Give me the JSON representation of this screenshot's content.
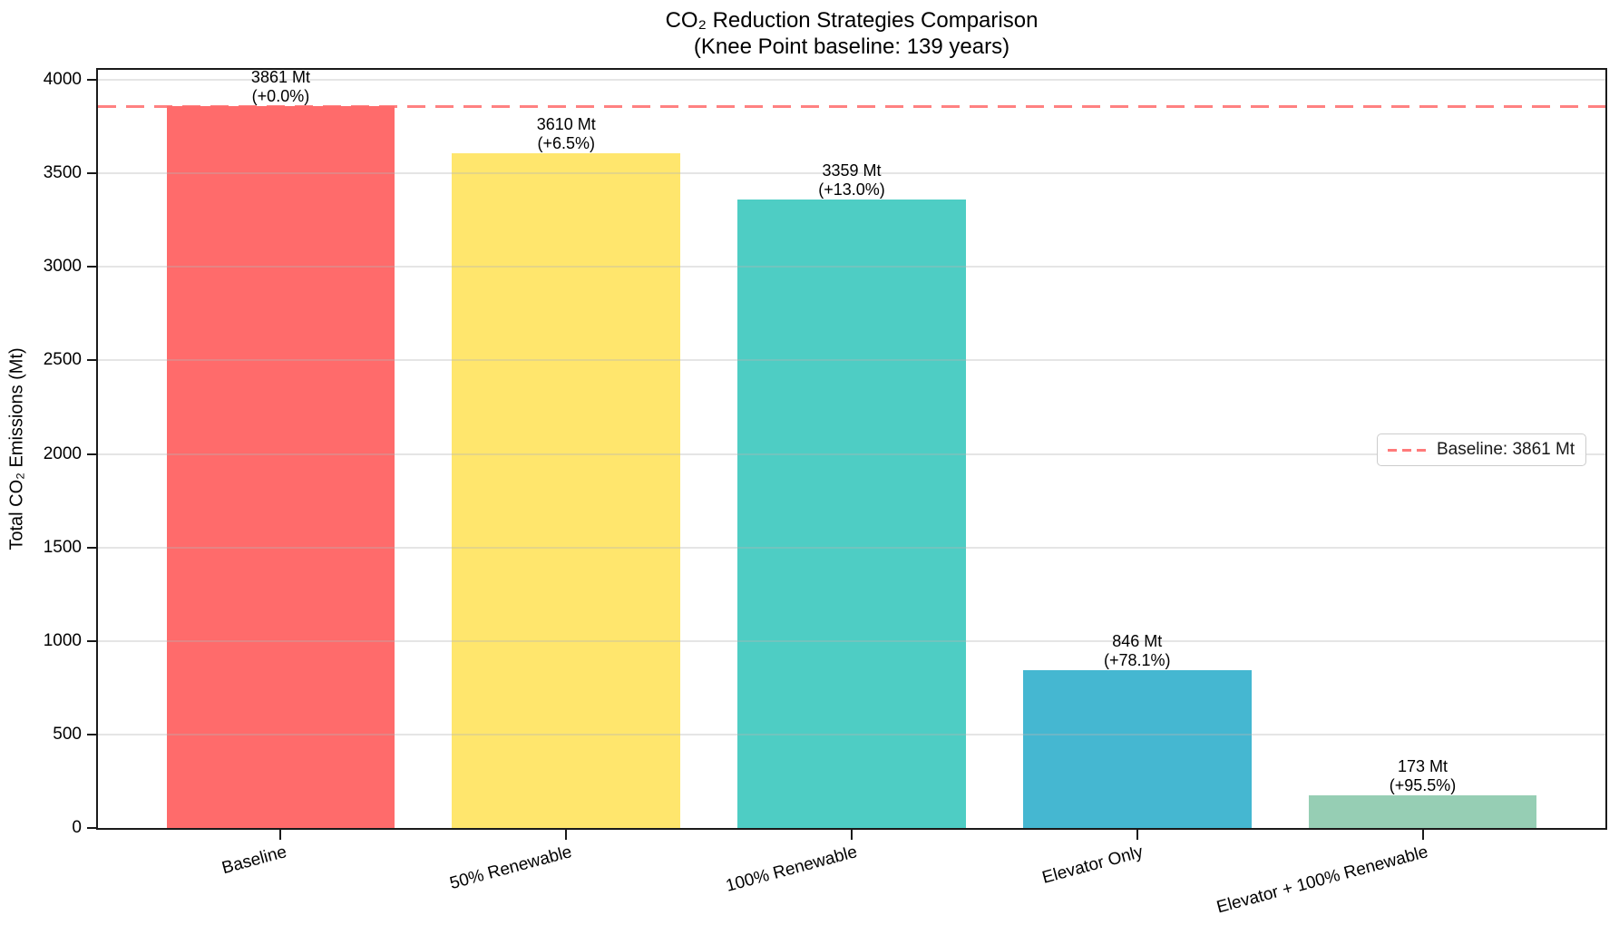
{
  "title": {
    "line1": "CO₂ Reduction Strategies Comparison",
    "line2": "(Knee Point baseline: 139 years)"
  },
  "chart_data": {
    "type": "bar",
    "title": "CO₂ Reduction Strategies Comparison",
    "subtitle": "(Knee Point baseline: 139 years)",
    "ylabel": "Total CO₂ Emissions (Mt)",
    "xlabel": "",
    "categories": [
      "Baseline",
      "50% Renewable",
      "100% Renewable",
      "Elevator Only",
      "Elevator + 100% Renewable"
    ],
    "values": [
      3861,
      3610,
      3359,
      846,
      173
    ],
    "value_labels": [
      "3861 Mt",
      "3610 Mt",
      "3359 Mt",
      "846 Mt",
      "173 Mt"
    ],
    "pct_labels": [
      "(+0.0%)",
      "(+6.5%)",
      "(+13.0%)",
      "(+78.1%)",
      "(+95.5%)"
    ],
    "bar_colors": [
      "#FF6B6B",
      "#FFE66D",
      "#4ECDC4",
      "#45B7D1",
      "#96CEB4"
    ],
    "yticks": [
      0,
      500,
      1000,
      1500,
      2000,
      2500,
      3000,
      3500,
      4000
    ],
    "ylim": [
      0,
      4054
    ],
    "grid": true,
    "x_tick_rotation_deg": 15,
    "baseline_line": {
      "value": 3861,
      "color": "#FF6B6B",
      "style": "dashed",
      "legend_label": "Baseline: 3861 Mt"
    },
    "legend": {
      "position": "center-right",
      "entries": [
        {
          "label": "Baseline: 3861 Mt",
          "color": "#FF6B6B",
          "line_style": "dashed"
        }
      ]
    }
  }
}
